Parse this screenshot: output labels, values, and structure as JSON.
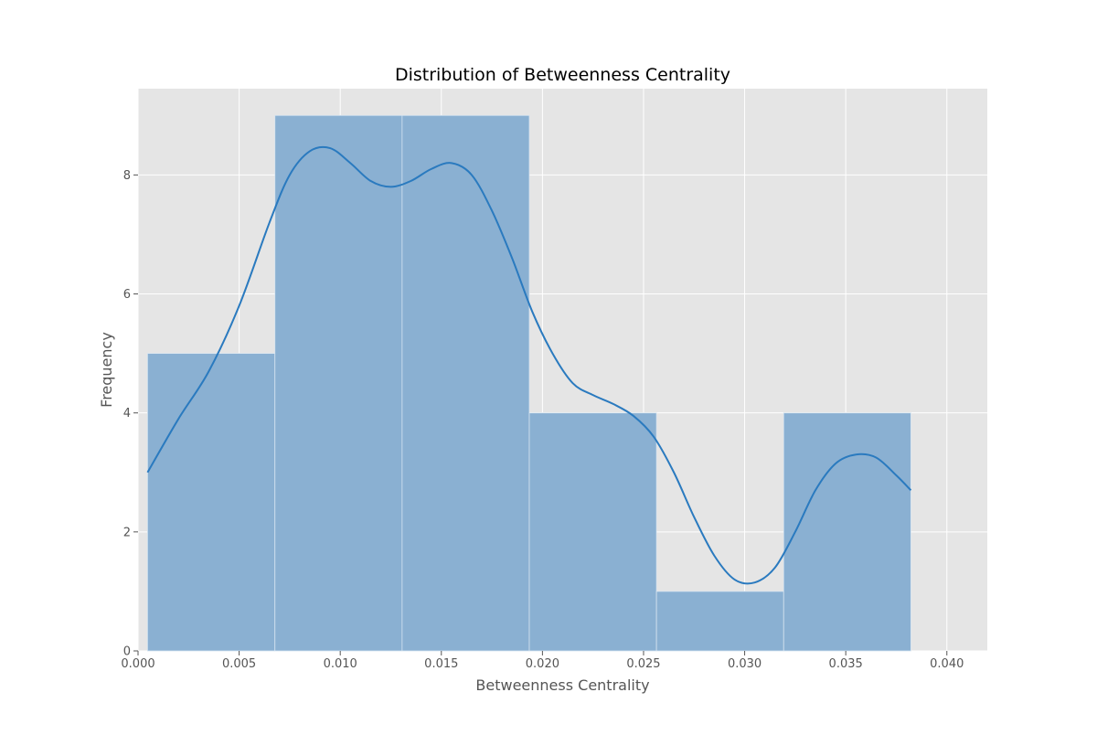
{
  "chart_data": {
    "type": "bar",
    "subtype": "histogram-with-kde",
    "title": "Distribution of Betweenness Centrality",
    "xlabel": "Betweenness Centrality",
    "ylabel": "Frequency",
    "xlim": [
      0.0,
      0.042
    ],
    "ylim": [
      0,
      9.45
    ],
    "xticks": [
      0.0,
      0.005,
      0.01,
      0.015,
      0.02,
      0.025,
      0.03,
      0.035,
      0.04
    ],
    "xtick_labels": [
      "0.000",
      "0.005",
      "0.010",
      "0.015",
      "0.020",
      "0.025",
      "0.030",
      "0.035",
      "0.040"
    ],
    "yticks": [
      0,
      2,
      4,
      6,
      8
    ],
    "ytick_labels": [
      "0",
      "2",
      "4",
      "6",
      "8"
    ],
    "grid": true,
    "bins": [
      {
        "start": 0.00047,
        "end": 0.00677,
        "count": 5
      },
      {
        "start": 0.00677,
        "end": 0.01306,
        "count": 9
      },
      {
        "start": 0.01306,
        "end": 0.01935,
        "count": 9
      },
      {
        "start": 0.01935,
        "end": 0.02564,
        "count": 4
      },
      {
        "start": 0.02564,
        "end": 0.03193,
        "count": 1
      },
      {
        "start": 0.03193,
        "end": 0.03822,
        "count": 4
      }
    ],
    "kde": {
      "x": [
        0.00047,
        0.002,
        0.0035,
        0.005,
        0.0065,
        0.0075,
        0.0085,
        0.0095,
        0.0105,
        0.0115,
        0.0125,
        0.0135,
        0.0145,
        0.0155,
        0.0165,
        0.0175,
        0.0185,
        0.0195,
        0.0205,
        0.0215,
        0.0225,
        0.0235,
        0.0245,
        0.0255,
        0.0265,
        0.0275,
        0.0285,
        0.0295,
        0.0305,
        0.0315,
        0.0325,
        0.0335,
        0.0345,
        0.0355,
        0.0365,
        0.0375,
        0.03822
      ],
      "y": [
        3.0,
        3.9,
        4.7,
        5.8,
        7.2,
        8.0,
        8.4,
        8.45,
        8.2,
        7.9,
        7.8,
        7.9,
        8.1,
        8.2,
        8.0,
        7.4,
        6.6,
        5.7,
        5.0,
        4.5,
        4.3,
        4.15,
        3.95,
        3.6,
        3.0,
        2.25,
        1.6,
        1.2,
        1.15,
        1.4,
        2.0,
        2.7,
        3.15,
        3.3,
        3.25,
        2.95,
        2.7
      ]
    },
    "colors": {
      "bar_fill": "#8ab0d2",
      "bar_edge": "#d6e4f0",
      "kde_line": "#2a7abf",
      "plot_background": "#e5e5e5",
      "grid": "#ffffff",
      "text": "#555555",
      "title": "#000000"
    }
  }
}
